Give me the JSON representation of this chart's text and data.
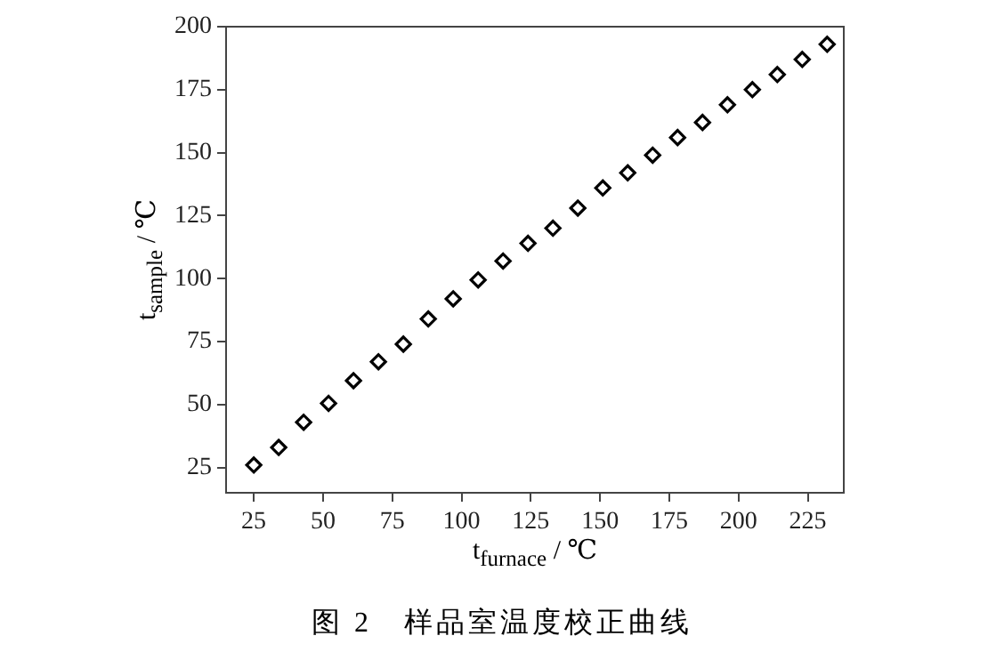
{
  "chart_data": {
    "type": "scatter",
    "xlabel": "t$_{furnace}$ / ℃",
    "ylabel": "t$_{sample}$ / ℃",
    "annotations": [
      "图 2　样品室温度校正曲线"
    ],
    "x": [
      25,
      34,
      43,
      52,
      61,
      70,
      79,
      88,
      97,
      106,
      115,
      124,
      133,
      142,
      151,
      160,
      169,
      178,
      187,
      196,
      205,
      214,
      223,
      232
    ],
    "series": [
      {
        "color": "#000000",
        "values": [
          26,
          33,
          43,
          50.5,
          59.5,
          67,
          74,
          84,
          92,
          99.5,
          107,
          114,
          120,
          128,
          136,
          142,
          149,
          156,
          162,
          169,
          175,
          181,
          187,
          193
        ]
      }
    ],
    "xlim": [
      15,
      238
    ],
    "ylim": [
      15,
      200
    ],
    "xticks": [
      25,
      50,
      75,
      100,
      125,
      150,
      175,
      200,
      225
    ],
    "yticks": [
      25,
      50,
      75,
      100,
      125,
      150,
      175,
      200
    ],
    "marker": "diamond",
    "grid": false,
    "legend": false
  }
}
